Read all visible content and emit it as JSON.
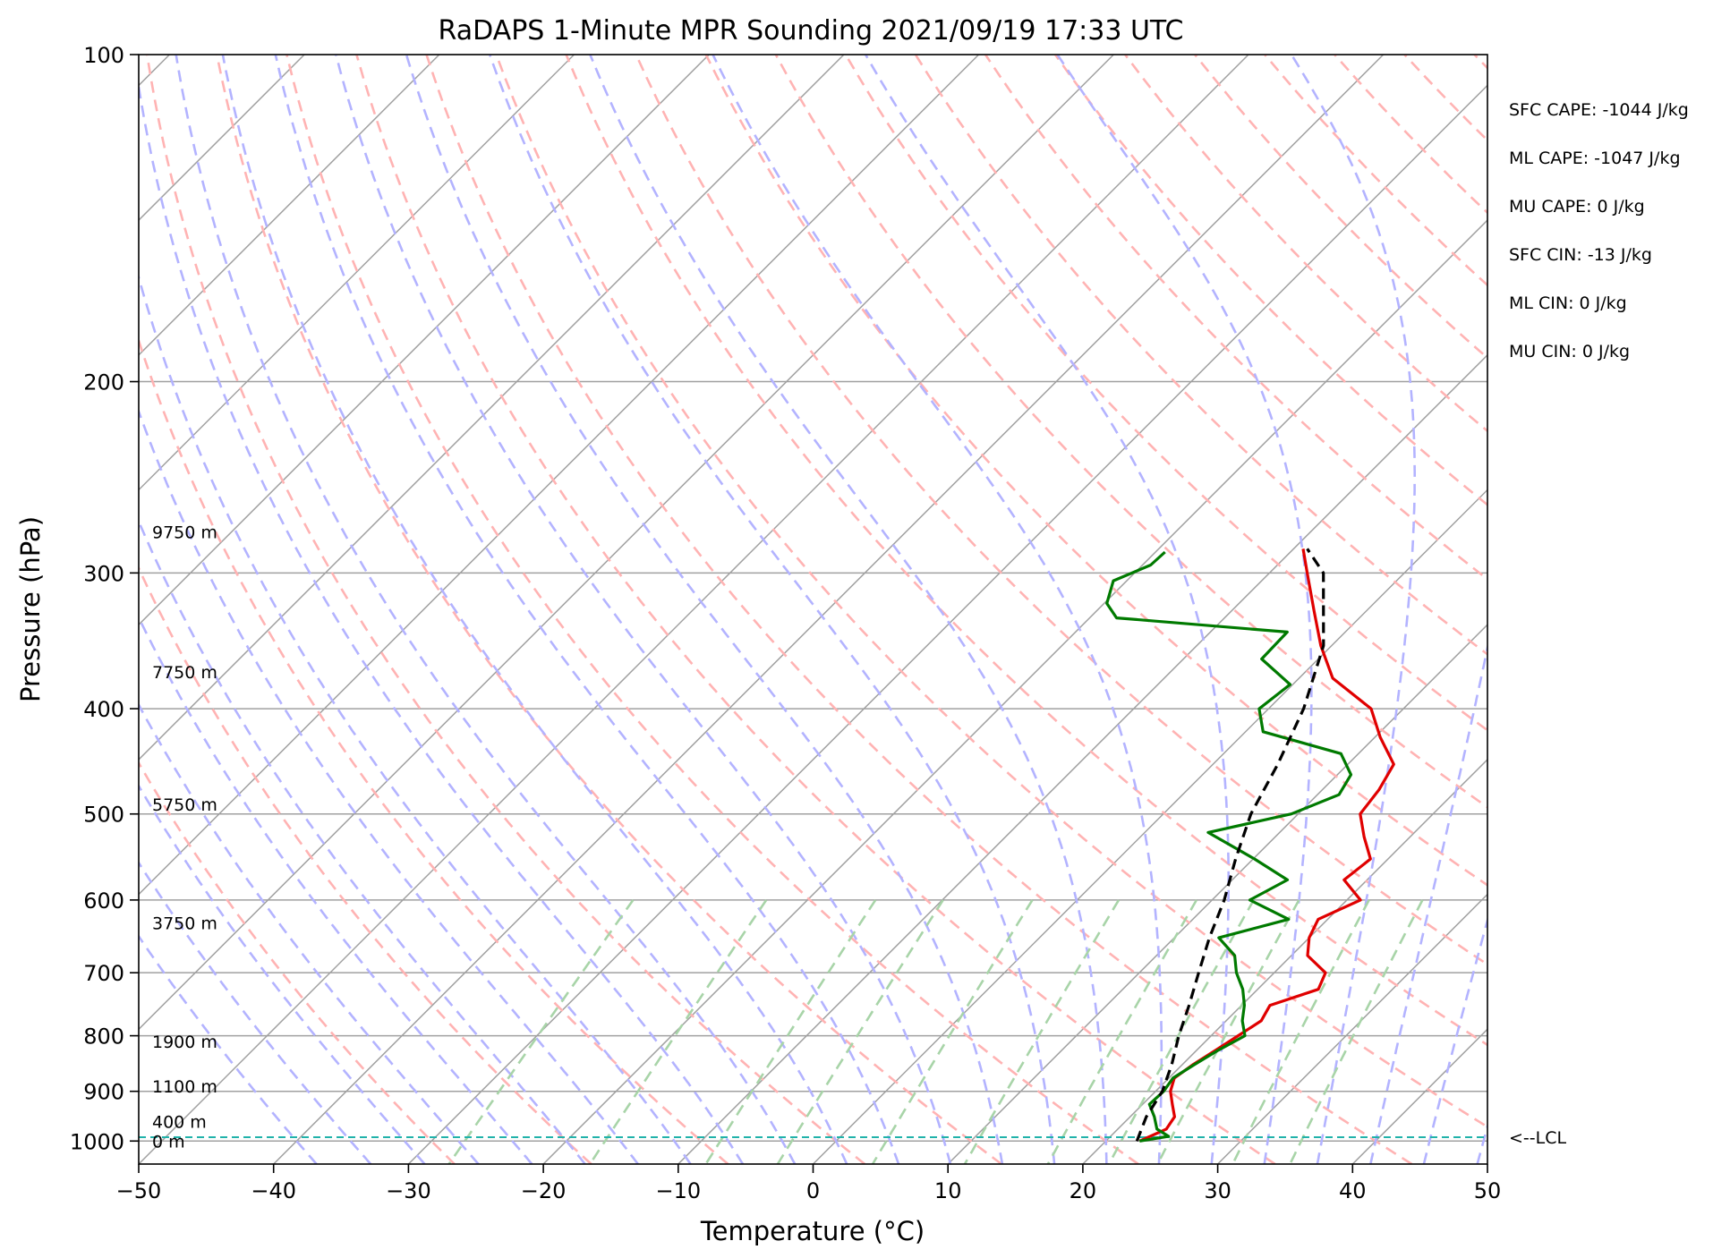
{
  "chart_data": {
    "type": "line",
    "title": "RaDAPS 1-Minute MPR Sounding 2021/09/19 17:33 UTC",
    "xlabel": "Temperature (°C)",
    "ylabel": "Pressure (hPa)",
    "xlim": [
      -50,
      50
    ],
    "ylim": [
      1050,
      100
    ],
    "y_scale": "log",
    "x_ticks": [
      "−50",
      "−40",
      "−30",
      "−20",
      "−10",
      "0",
      "10",
      "20",
      "30",
      "40",
      "50"
    ],
    "x_tick_values": [
      -50,
      -40,
      -30,
      -20,
      -10,
      0,
      10,
      20,
      30,
      40,
      50
    ],
    "y_ticks": [
      "100",
      "200",
      "300",
      "400",
      "500",
      "600",
      "700",
      "800",
      "900",
      "1000"
    ],
    "y_tick_values": [
      100,
      200,
      300,
      400,
      500,
      600,
      700,
      800,
      900,
      1000
    ],
    "grid": true,
    "colors": {
      "temperature": "#e00000",
      "dewpoint": "#007a00",
      "parcel": "#000000",
      "dry_adiabat": "#ffb3b3",
      "moist_adiabat": "#b3b3ff",
      "mixing_ratio": "#a8d4a8",
      "isotherm": "#a0a0a0",
      "lcl": "#20b2aa"
    },
    "series": [
      {
        "key": "temperature",
        "p": [
          1000,
          975,
          950,
          925,
          900,
          875,
          850,
          825,
          800,
          775,
          750,
          725,
          700,
          675,
          650,
          625,
          600,
          575,
          550,
          525,
          500,
          475,
          450,
          425,
          400,
          375,
          350,
          325,
          300,
          285
        ],
        "values": [
          22.5,
          23.6,
          23.3,
          22.2,
          21.1,
          20.4,
          20.8,
          21.4,
          22.0,
          22.6,
          22.1,
          24.5,
          23.8,
          21.2,
          20.0,
          19.3,
          21.0,
          18.3,
          18.7,
          16.6,
          14.6,
          14.2,
          13.4,
          10.4,
          7.6,
          2.5,
          -0.8,
          -3.9,
          -7.2,
          -9.3
        ]
      },
      {
        "key": "dewpoint",
        "p": [
          1000,
          990,
          975,
          950,
          925,
          900,
          875,
          850,
          825,
          800,
          775,
          750,
          725,
          700,
          675,
          650,
          625,
          600,
          575,
          550,
          520,
          500,
          480,
          460,
          440,
          420,
          400,
          380,
          360,
          340,
          330,
          320,
          305,
          295,
          287
        ],
        "values": [
          22.5,
          24.3,
          22.9,
          21.8,
          20.5,
          20.6,
          20.3,
          20.9,
          21.6,
          22.5,
          21.2,
          20.2,
          18.9,
          17.2,
          15.8,
          13.3,
          17.1,
          12.8,
          14.1,
          10.1,
          4.7,
          9.5,
          11.6,
          11.0,
          8.7,
          1.3,
          -0.7,
          -0.2,
          -4.2,
          -4.3,
          -18.0,
          -19.8,
          -21.0,
          -19.4,
          -19.3
        ]
      },
      {
        "key": "parcel",
        "p": [
          1000,
          950,
          900,
          850,
          800,
          750,
          700,
          650,
          600,
          550,
          500,
          450,
          400,
          350,
          300,
          285
        ],
        "values": [
          22.3,
          21.2,
          20.5,
          19.2,
          17.6,
          16.1,
          14.4,
          12.6,
          10.9,
          8.7,
          6.5,
          4.8,
          2.6,
          -0.6,
          -6.0,
          -9.0
        ]
      }
    ],
    "lcl": {
      "p": 992,
      "label": "<--LCL"
    },
    "height_labels": [
      "0 m",
      "400 m",
      "1100 m",
      "1900 m",
      "3750 m",
      "5750 m",
      "7750 m",
      "9750 m"
    ],
    "height_label_pressures": [
      1000,
      960,
      890,
      810,
      630,
      490,
      370,
      275
    ],
    "indices": [
      "SFC CAPE: -1044 J/kg",
      "ML CAPE: -1047 J/kg",
      "MU CAPE: 0 J/kg",
      "SFC CIN: -13 J/kg",
      "ML CIN: 0 J/kg",
      "MU CIN: 0 J/kg"
    ]
  }
}
